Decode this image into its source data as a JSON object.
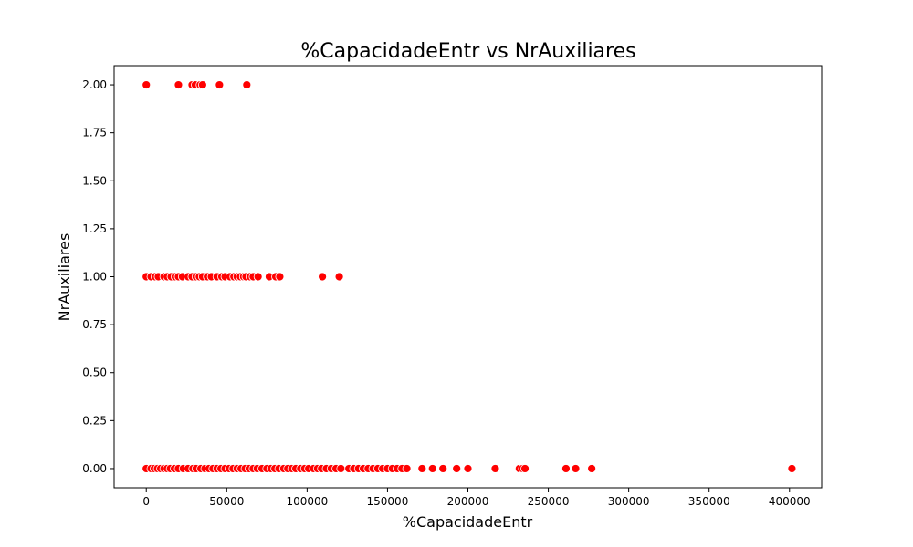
{
  "chart_data": {
    "type": "scatter",
    "title": "%CapacidadeEntr vs NrAuxiliares",
    "xlabel": "%CapacidadeEntr",
    "ylabel": "NrAuxiliares",
    "xlim": [
      -20000,
      420000
    ],
    "ylim": [
      -0.1,
      2.1
    ],
    "xticks": [
      0,
      50000,
      100000,
      150000,
      200000,
      250000,
      300000,
      350000,
      400000
    ],
    "xtick_labels": [
      "0",
      "50000",
      "100000",
      "150000",
      "200000",
      "250000",
      "300000",
      "350000",
      "400000"
    ],
    "yticks": [
      0.0,
      0.25,
      0.5,
      0.75,
      1.0,
      1.25,
      1.5,
      1.75,
      2.0
    ],
    "ytick_labels": [
      "0.00",
      "0.25",
      "0.50",
      "0.75",
      "1.00",
      "1.25",
      "1.50",
      "1.75",
      "2.00"
    ],
    "marker_color": "#ff0000",
    "grid": false,
    "series": [
      {
        "name": "NrAuxiliares",
        "points": [
          {
            "x": 0,
            "y": 2
          },
          {
            "x": 20000,
            "y": 2
          },
          {
            "x": 28500,
            "y": 2
          },
          {
            "x": 30500,
            "y": 2
          },
          {
            "x": 33500,
            "y": 2
          },
          {
            "x": 35000,
            "y": 2
          },
          {
            "x": 45500,
            "y": 2
          },
          {
            "x": 62500,
            "y": 2
          },
          {
            "x": 0,
            "y": 1
          },
          {
            "x": 3000,
            "y": 1
          },
          {
            "x": 5500,
            "y": 1
          },
          {
            "x": 7500,
            "y": 1
          },
          {
            "x": 11000,
            "y": 1
          },
          {
            "x": 13000,
            "y": 1
          },
          {
            "x": 15500,
            "y": 1
          },
          {
            "x": 18000,
            "y": 1
          },
          {
            "x": 20000,
            "y": 1
          },
          {
            "x": 22500,
            "y": 1
          },
          {
            "x": 26000,
            "y": 1
          },
          {
            "x": 28500,
            "y": 1
          },
          {
            "x": 31000,
            "y": 1
          },
          {
            "x": 33000,
            "y": 1
          },
          {
            "x": 35000,
            "y": 1
          },
          {
            "x": 38000,
            "y": 1
          },
          {
            "x": 40500,
            "y": 1
          },
          {
            "x": 44000,
            "y": 1
          },
          {
            "x": 47000,
            "y": 1
          },
          {
            "x": 49000,
            "y": 1
          },
          {
            "x": 52000,
            "y": 1
          },
          {
            "x": 54500,
            "y": 1
          },
          {
            "x": 56500,
            "y": 1
          },
          {
            "x": 58500,
            "y": 1
          },
          {
            "x": 60500,
            "y": 1
          },
          {
            "x": 62000,
            "y": 1
          },
          {
            "x": 64500,
            "y": 1
          },
          {
            "x": 66500,
            "y": 1
          },
          {
            "x": 69500,
            "y": 1
          },
          {
            "x": 76500,
            "y": 1
          },
          {
            "x": 80500,
            "y": 1
          },
          {
            "x": 83000,
            "y": 1
          },
          {
            "x": 109500,
            "y": 1
          },
          {
            "x": 120000,
            "y": 1
          },
          {
            "x": 0,
            "y": 0
          },
          {
            "x": 3000,
            "y": 0
          },
          {
            "x": 5000,
            "y": 0
          },
          {
            "x": 7000,
            "y": 0
          },
          {
            "x": 9000,
            "y": 0
          },
          {
            "x": 11000,
            "y": 0
          },
          {
            "x": 13000,
            "y": 0
          },
          {
            "x": 15000,
            "y": 0
          },
          {
            "x": 17500,
            "y": 0
          },
          {
            "x": 20000,
            "y": 0
          },
          {
            "x": 23000,
            "y": 0
          },
          {
            "x": 26000,
            "y": 0
          },
          {
            "x": 29000,
            "y": 0
          },
          {
            "x": 31000,
            "y": 0
          },
          {
            "x": 34000,
            "y": 0
          },
          {
            "x": 36500,
            "y": 0
          },
          {
            "x": 39000,
            "y": 0
          },
          {
            "x": 41500,
            "y": 0
          },
          {
            "x": 44000,
            "y": 0
          },
          {
            "x": 46500,
            "y": 0
          },
          {
            "x": 49000,
            "y": 0
          },
          {
            "x": 51500,
            "y": 0
          },
          {
            "x": 54000,
            "y": 0
          },
          {
            "x": 56500,
            "y": 0
          },
          {
            "x": 59000,
            "y": 0
          },
          {
            "x": 61500,
            "y": 0
          },
          {
            "x": 64000,
            "y": 0
          },
          {
            "x": 66500,
            "y": 0
          },
          {
            "x": 69000,
            "y": 0
          },
          {
            "x": 72000,
            "y": 0
          },
          {
            "x": 75000,
            "y": 0
          },
          {
            "x": 77500,
            "y": 0
          },
          {
            "x": 80000,
            "y": 0
          },
          {
            "x": 82500,
            "y": 0
          },
          {
            "x": 85500,
            "y": 0
          },
          {
            "x": 88000,
            "y": 0
          },
          {
            "x": 90500,
            "y": 0
          },
          {
            "x": 93000,
            "y": 0
          },
          {
            "x": 96000,
            "y": 0
          },
          {
            "x": 98500,
            "y": 0
          },
          {
            "x": 101000,
            "y": 0
          },
          {
            "x": 104000,
            "y": 0
          },
          {
            "x": 106500,
            "y": 0
          },
          {
            "x": 109000,
            "y": 0
          },
          {
            "x": 112000,
            "y": 0
          },
          {
            "x": 115000,
            "y": 0
          },
          {
            "x": 118000,
            "y": 0
          },
          {
            "x": 121000,
            "y": 0
          },
          {
            "x": 126000,
            "y": 0
          },
          {
            "x": 129000,
            "y": 0
          },
          {
            "x": 132000,
            "y": 0
          },
          {
            "x": 135000,
            "y": 0
          },
          {
            "x": 138000,
            "y": 0
          },
          {
            "x": 141000,
            "y": 0
          },
          {
            "x": 144000,
            "y": 0
          },
          {
            "x": 147000,
            "y": 0
          },
          {
            "x": 150000,
            "y": 0
          },
          {
            "x": 153000,
            "y": 0
          },
          {
            "x": 156000,
            "y": 0
          },
          {
            "x": 159000,
            "y": 0
          },
          {
            "x": 162000,
            "y": 0
          },
          {
            "x": 171500,
            "y": 0
          },
          {
            "x": 178000,
            "y": 0
          },
          {
            "x": 184500,
            "y": 0
          },
          {
            "x": 193000,
            "y": 0
          },
          {
            "x": 200000,
            "y": 0
          },
          {
            "x": 217000,
            "y": 0
          },
          {
            "x": 232000,
            "y": 0
          },
          {
            "x": 234000,
            "y": 0
          },
          {
            "x": 235500,
            "y": 0
          },
          {
            "x": 261000,
            "y": 0
          },
          {
            "x": 267000,
            "y": 0
          },
          {
            "x": 277000,
            "y": 0
          },
          {
            "x": 401500,
            "y": 0
          }
        ]
      }
    ]
  }
}
